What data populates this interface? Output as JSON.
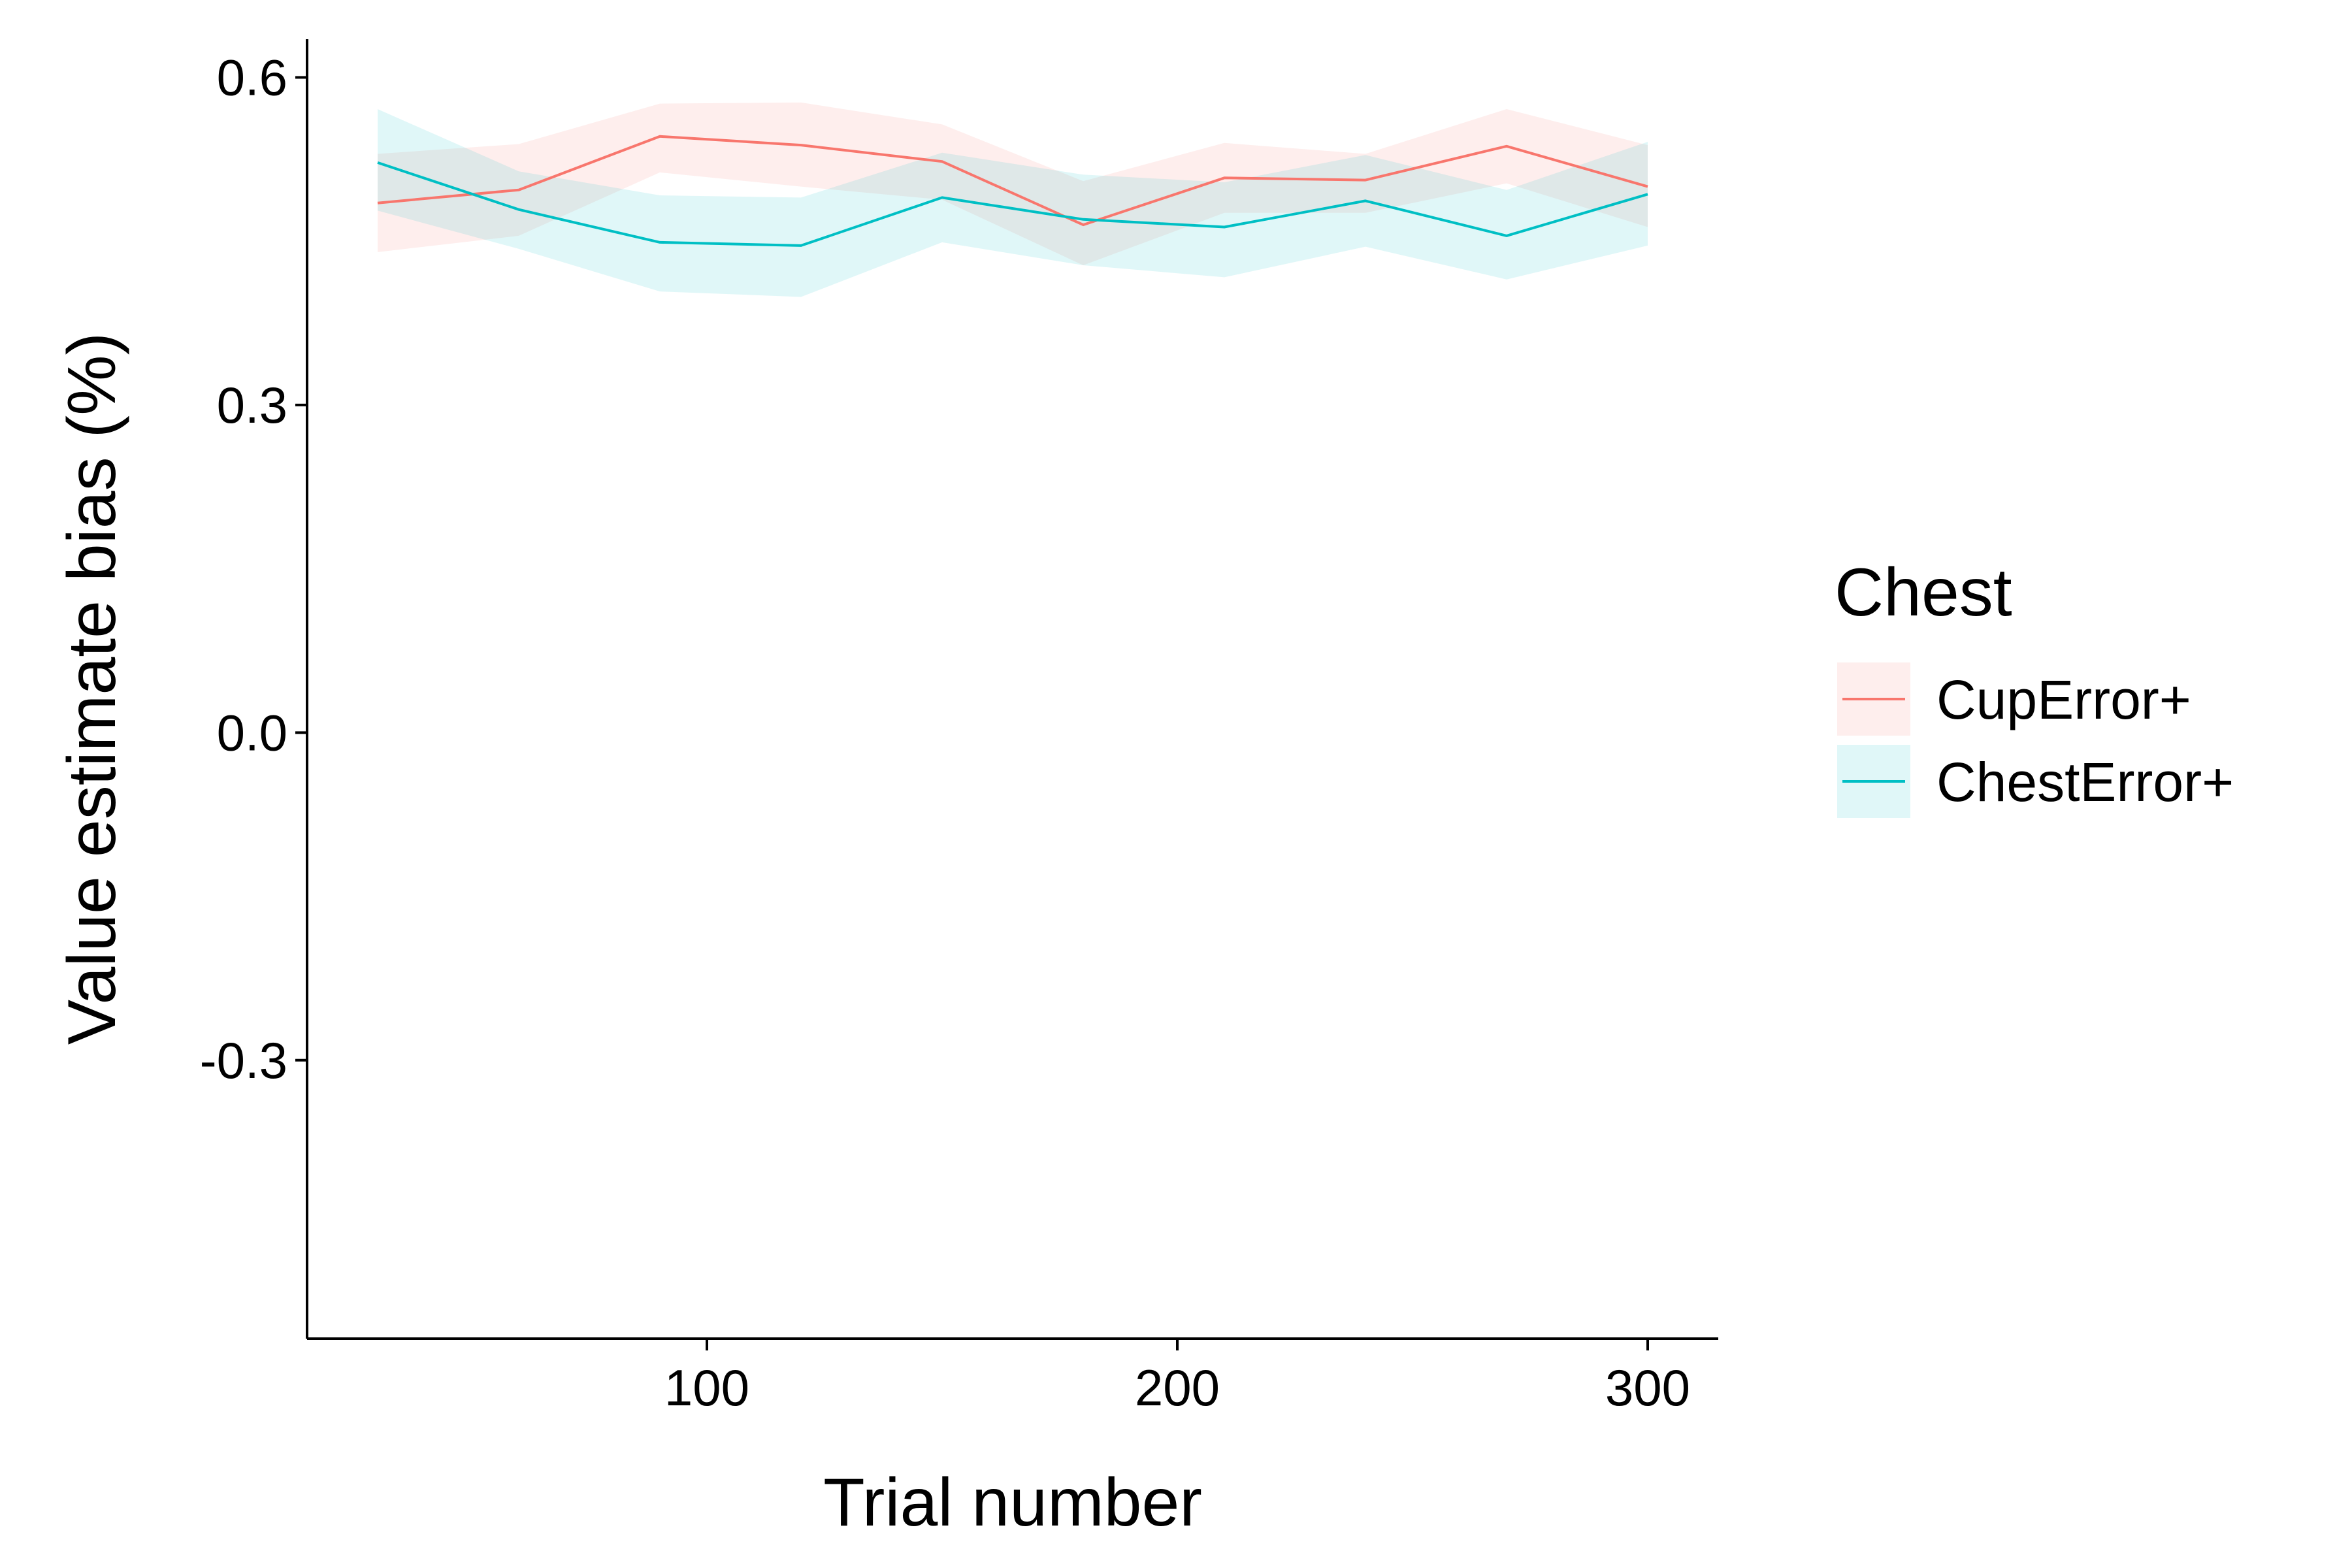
{
  "chart_data": {
    "type": "line",
    "xlabel": "Trial number",
    "ylabel": "Value estimate bias (%)",
    "xlim": [
      15,
      315
    ],
    "ylim": [
      -0.555,
      0.635
    ],
    "xticks": [
      100,
      200,
      300
    ],
    "xtick_labels": [
      "100",
      "200",
      "300"
    ],
    "yticks": [
      -0.3,
      0.0,
      0.3,
      0.6
    ],
    "ytick_labels": [
      "-0.3",
      "0.0",
      "0.3",
      "0.6"
    ],
    "grid": false,
    "legend": {
      "title": "Chest",
      "placement": "right"
    },
    "x": [
      30,
      60,
      90,
      120,
      150,
      180,
      210,
      240,
      270,
      300
    ],
    "series": [
      {
        "name": "CupError+",
        "color": "#F8766D",
        "values": [
          0.485,
          0.497,
          0.546,
          0.538,
          0.523,
          0.465,
          0.508,
          0.506,
          0.537,
          0.5
        ],
        "lower": [
          0.44,
          0.455,
          0.513,
          0.5,
          0.488,
          0.428,
          0.476,
          0.476,
          0.503,
          0.463
        ],
        "upper": [
          0.53,
          0.539,
          0.576,
          0.577,
          0.557,
          0.505,
          0.54,
          0.53,
          0.571,
          0.538
        ]
      },
      {
        "name": "ChestError+",
        "color": "#00BFC4",
        "values": [
          0.522,
          0.479,
          0.449,
          0.446,
          0.49,
          0.47,
          0.463,
          0.487,
          0.455,
          0.493
        ],
        "lower": [
          0.478,
          0.443,
          0.404,
          0.399,
          0.449,
          0.428,
          0.417,
          0.445,
          0.415,
          0.446
        ],
        "upper": [
          0.571,
          0.514,
          0.492,
          0.49,
          0.531,
          0.511,
          0.504,
          0.529,
          0.497,
          0.541
        ]
      }
    ]
  }
}
